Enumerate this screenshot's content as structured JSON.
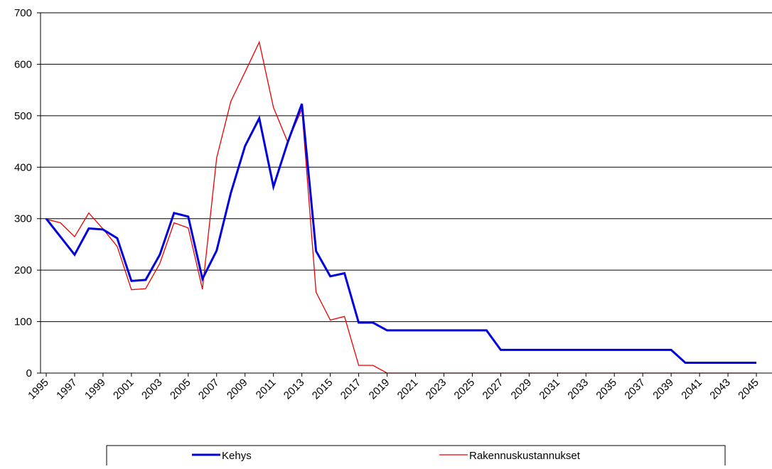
{
  "chart_data": {
    "type": "line",
    "x": [
      1995,
      1996,
      1997,
      1998,
      1999,
      2000,
      2001,
      2002,
      2003,
      2004,
      2005,
      2006,
      2007,
      2008,
      2009,
      2010,
      2011,
      2012,
      2013,
      2014,
      2015,
      2016,
      2017,
      2018,
      2019,
      2020,
      2021,
      2022,
      2023,
      2024,
      2025,
      2026,
      2027,
      2028,
      2029,
      2030,
      2031,
      2032,
      2033,
      2034,
      2035,
      2036,
      2037,
      2038,
      2039,
      2040,
      2041,
      2042,
      2043,
      2044,
      2045
    ],
    "series": [
      {
        "name": "Kehys",
        "color": "#0000dd",
        "values": [
          300,
          265,
          230,
          281,
          279,
          262,
          179,
          181,
          230,
          311,
          304,
          183,
          238,
          350,
          441,
          495,
          362,
          448,
          523,
          237,
          188,
          194,
          98,
          98,
          83,
          83,
          83,
          83,
          83,
          83,
          83,
          83,
          45,
          45,
          45,
          45,
          45,
          45,
          45,
          45,
          45,
          45,
          45,
          45,
          45,
          20,
          20,
          20,
          20,
          20,
          20
        ]
      },
      {
        "name": "Rakennuskustannukset",
        "color": "#ee0000",
        "values": [
          299,
          292,
          265,
          311,
          280,
          246,
          162,
          164,
          213,
          292,
          282,
          163,
          418,
          528,
          585,
          643,
          516,
          449,
          513,
          157,
          103,
          110,
          15,
          15,
          0,
          0,
          0,
          0,
          0,
          0,
          0,
          0,
          0,
          0,
          0,
          0,
          0,
          0,
          0,
          0,
          0,
          0,
          0,
          0,
          0,
          0,
          0,
          0,
          0,
          0,
          0
        ]
      }
    ],
    "xlim": [
      1994.6,
      2046.1
    ],
    "xticks": [
      1995,
      1997,
      1999,
      2001,
      2003,
      2005,
      2007,
      2009,
      2011,
      2013,
      2015,
      2017,
      2019,
      2021,
      2023,
      2025,
      2027,
      2029,
      2031,
      2033,
      2035,
      2037,
      2039,
      2041,
      2043,
      2045
    ],
    "ylim": [
      0,
      700
    ],
    "yticks": [
      0,
      100,
      200,
      300,
      400,
      500,
      600,
      700
    ],
    "grid": true
  }
}
